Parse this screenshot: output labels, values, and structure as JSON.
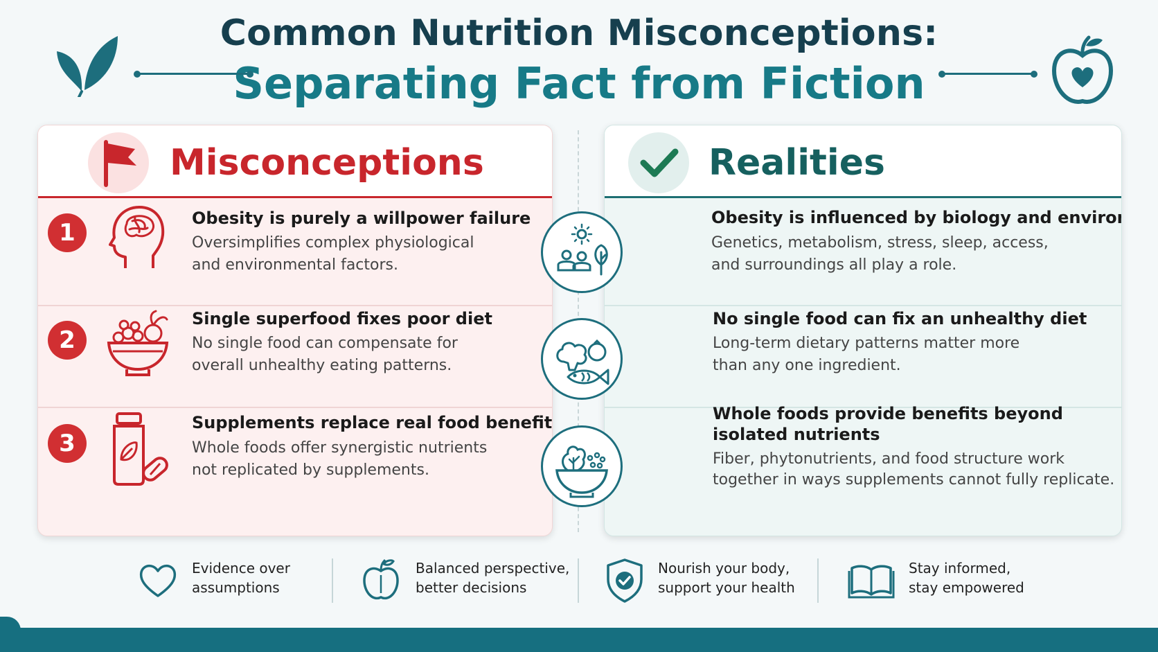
{
  "header": {
    "title_line1": "Common Nutrition Misconceptions:",
    "title_line2": "Separating Fact from Fiction",
    "left_icon": "leaf-icon",
    "right_icon": "apple-heart-icon"
  },
  "misconceptions": {
    "title": "Misconceptions",
    "icon": "flag-icon",
    "accent": "#c8262c",
    "items": [
      {
        "number": "1",
        "icon": "brain-head-icon",
        "heading": "Obesity is purely a willpower failure",
        "desc_line1": "Oversimplifies complex physiological",
        "desc_line2": "and environmental factors."
      },
      {
        "number": "2",
        "icon": "fruit-bowl-icon",
        "heading": "Single superfood fixes poor diet",
        "desc_line1": "No single food can compensate for",
        "desc_line2": "overall unhealthy eating patterns."
      },
      {
        "number": "3",
        "icon": "supplement-bottle-icon",
        "heading": "Supplements replace real food benefits",
        "desc_line1": "Whole foods offer synergistic nutrients",
        "desc_line2": "not replicated by supplements."
      }
    ]
  },
  "realities": {
    "title": "Realities",
    "icon": "checkmark-icon",
    "accent": "#16605f",
    "items": [
      {
        "icon": "people-environment-icon",
        "heading": "Obesity is influenced by biology and environment",
        "desc_line1": "Genetics, metabolism, stress, sleep, access,",
        "desc_line2": "and surroundings all play a role."
      },
      {
        "icon": "broccoli-fish-icon",
        "heading": "No single food can fix an unhealthy diet",
        "desc_line1": "Long-term dietary patterns matter more",
        "desc_line2": "than any one ingredient."
      },
      {
        "icon": "salad-bowl-icon",
        "heading_line1": "Whole foods provide benefits beyond",
        "heading_line2": "isolated nutrients",
        "desc_line1": "Fiber, phytonutrients, and food structure work",
        "desc_line2": "together in ways supplements cannot fully replicate."
      }
    ]
  },
  "footer": [
    {
      "icon": "heart-icon",
      "line1": "Evidence over",
      "line2": "assumptions"
    },
    {
      "icon": "apple-icon",
      "line1": "Balanced perspective,",
      "line2": "better decisions"
    },
    {
      "icon": "shield-check-icon",
      "line1": "Nourish your body,",
      "line2": "support your health"
    },
    {
      "icon": "open-book-icon",
      "line1": "Stay informed,",
      "line2": "stay empowered"
    }
  ]
}
